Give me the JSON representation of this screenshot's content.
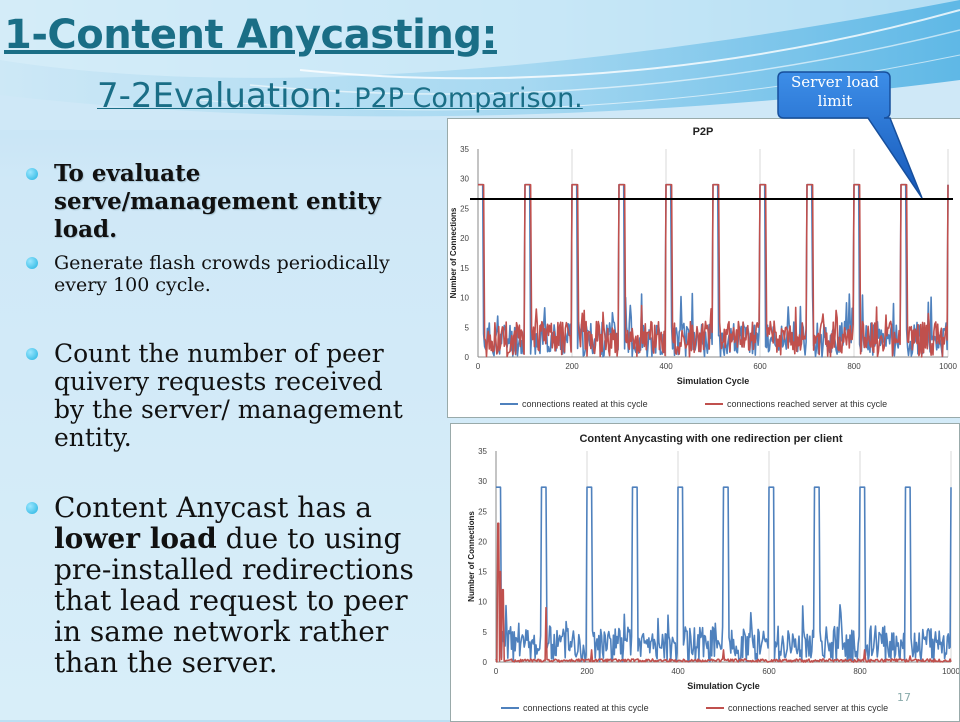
{
  "slide": {
    "title": "1-Content Anycasting:",
    "subtitle_part1": "7-2Evaluation: ",
    "subtitle_part2": "P2P Comparison.",
    "page_number": "17"
  },
  "bullets": {
    "b1": "To evaluate serve/management entity load.",
    "b2": "Generate flash crowds periodically every 100 cycle.",
    "b3": "Count the number of peer quivery requests received by the server/ management entity.",
    "b4_pre": "Content Anycast has a ",
    "b4_bold": "lower load",
    "b4_post": " due to using pre-installed redirections that lead request to peer in same network rather than the server."
  },
  "callout": {
    "text": "Server load limit",
    "color": "#1f6fd1"
  },
  "colors": {
    "title": "#1a6e86",
    "series_created": "#4f81bd",
    "series_reached": "#c0504d"
  },
  "chart_data": [
    {
      "type": "line",
      "title": "P2P",
      "xlabel": "Simulation Cycle",
      "ylabel": "Number of Connections",
      "xlim": [
        0,
        1000
      ],
      "ylim": [
        0,
        35
      ],
      "xticks": [
        0,
        200,
        400,
        600,
        800,
        1000
      ],
      "yticks": [
        0,
        5,
        10,
        15,
        20,
        25,
        30,
        35
      ],
      "grid": "vertical",
      "legend": "bottom",
      "reference_line": 26.5,
      "series": [
        {
          "name": "connections reated at this cycle",
          "color": "#4f81bd",
          "peaks": [
            0,
            100,
            200,
            300,
            400,
            500,
            600,
            700,
            800,
            900,
            1000
          ],
          "peak_value": 29,
          "peak_width": 12,
          "baseline_range": [
            0,
            6
          ],
          "baseline_max": 11
        },
        {
          "name": "connections reached server at this cycle",
          "color": "#c0504d",
          "peaks": [
            0,
            100,
            200,
            300,
            400,
            500,
            600,
            700,
            800,
            900,
            1000
          ],
          "peak_value": 29,
          "peak_width": 14,
          "baseline_range": [
            0,
            6
          ],
          "baseline_max": 9
        }
      ]
    },
    {
      "type": "line",
      "title": "Content Anycasting with one redirection per client",
      "xlabel": "Simulation Cycle",
      "ylabel": "Number of Connections",
      "xlim": [
        0,
        1000
      ],
      "ylim": [
        0,
        35
      ],
      "xticks": [
        0,
        200,
        400,
        600,
        800,
        1000
      ],
      "yticks": [
        0,
        5,
        10,
        15,
        20,
        25,
        30,
        35
      ],
      "grid": "vertical",
      "legend": "bottom",
      "series": [
        {
          "name": "connections reated at this cycle",
          "color": "#4f81bd",
          "peaks": [
            0,
            100,
            200,
            300,
            400,
            500,
            600,
            700,
            800,
            900,
            1000
          ],
          "peak_value": 29,
          "peak_width": 12,
          "baseline_range": [
            0,
            6
          ],
          "baseline_max": 10
        },
        {
          "name": "connections reached server at this cycle",
          "color": "#c0504d",
          "spikes": [
            [
              5,
              23
            ],
            [
              10,
              15
            ],
            [
              15,
              12
            ],
            [
              110,
              9
            ],
            [
              210,
              2
            ],
            [
              500,
              2
            ],
            [
              810,
              2
            ],
            [
              910,
              1
            ]
          ],
          "baseline_range": [
            0,
            0.5
          ]
        }
      ]
    }
  ]
}
